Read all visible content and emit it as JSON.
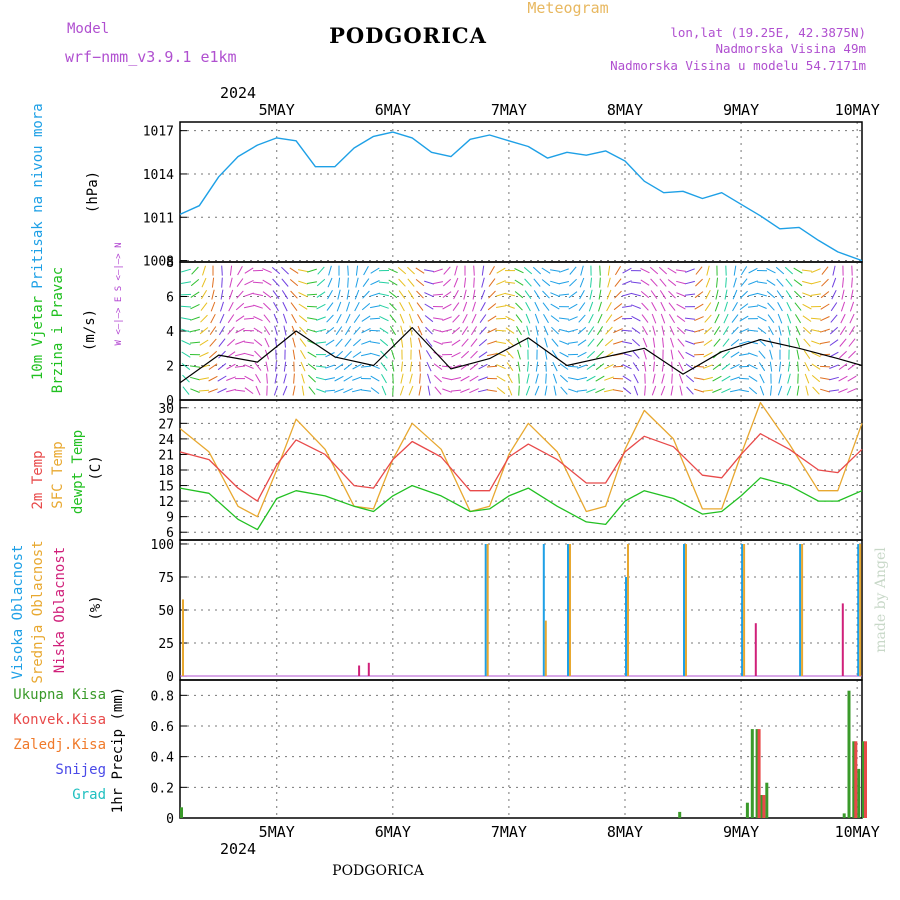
{
  "header": {
    "model_label": "Model",
    "model_name": "wrf−nmm_v3.9.1  e1km",
    "station_title": "PODGORICA",
    "meteogram_label": "Meteogram",
    "lonlat": "lon,lat (19.25E, 42.3875N)",
    "elevation": "Nadmorska Visina 49m",
    "model_elevation": "Nadmorska Visina u modelu 54.7171m",
    "footer_title": "PODGORICA",
    "watermark": "made by Angel"
  },
  "colors": {
    "pressure": "#1ea0e6",
    "temp_2m": "#e84a4a",
    "temp_sfc": "#e8a830",
    "dewpt": "#22c022",
    "cloud_high": "#1ea0e6",
    "cloud_mid": "#e8a830",
    "cloud_low": "#d0207a",
    "precip_total": "#3a9a2a",
    "precip_conv": "#e84a4a",
    "precip_frozen": "#f07a2a",
    "precip_snow": "#4a4ae8",
    "precip_graupel": "#20c0c0",
    "wind_label": "#20c020",
    "direction_legend": "#b040d0",
    "model_text": "#b050d0"
  },
  "chart_data": {
    "type": "line",
    "time_axis": {
      "year": "2024",
      "days": [
        "5MAY",
        "6MAY",
        "7MAY",
        "8MAY",
        "9MAY",
        "10MAY"
      ],
      "start": "2024-05-04 16:00",
      "end": "2024-05-10 13:00",
      "step_hours": 1
    },
    "panels": [
      {
        "id": "pressure",
        "ylabel": "Pritisak na nivou mora",
        "units": "(hPa)",
        "yticks": [
          1008,
          1011,
          1014,
          1017
        ],
        "ylim": [
          1007.9,
          1017.6
        ],
        "series": [
          {
            "name": "Pritisak na nivou mora",
            "x": [
              "2024-05-04 16:00",
              "2024-05-04 20:00",
              "2024-05-05 00:00",
              "2024-05-05 04:00",
              "2024-05-05 08:00",
              "2024-05-05 12:00",
              "2024-05-05 16:00",
              "2024-05-05 20:00",
              "2024-05-06 00:00",
              "2024-05-06 04:00",
              "2024-05-06 08:00",
              "2024-05-06 12:00",
              "2024-05-06 16:00",
              "2024-05-06 20:00",
              "2024-05-07 00:00",
              "2024-05-07 04:00",
              "2024-05-07 08:00",
              "2024-05-07 12:00",
              "2024-05-07 16:00",
              "2024-05-07 20:00",
              "2024-05-08 00:00",
              "2024-05-08 04:00",
              "2024-05-08 08:00",
              "2024-05-08 12:00",
              "2024-05-08 16:00",
              "2024-05-08 20:00",
              "2024-05-09 00:00",
              "2024-05-09 04:00",
              "2024-05-09 08:00",
              "2024-05-09 12:00",
              "2024-05-09 16:00",
              "2024-05-09 20:00",
              "2024-05-10 00:00",
              "2024-05-10 04:00",
              "2024-05-10 08:00",
              "2024-05-10 13:00"
            ],
            "values": [
              1011.2,
              1011.8,
              1013.8,
              1015.2,
              1016.0,
              1016.5,
              1016.3,
              1014.5,
              1014.5,
              1015.8,
              1016.6,
              1016.9,
              1016.5,
              1015.5,
              1015.2,
              1016.4,
              1016.7,
              1016.3,
              1015.9,
              1015.1,
              1015.5,
              1015.3,
              1015.6,
              1014.9,
              1013.5,
              1012.7,
              1012.8,
              1012.3,
              1012.7,
              1011.9,
              1011.1,
              1010.2,
              1010.3,
              1009.4,
              1008.6,
              1008.0
            ]
          }
        ]
      },
      {
        "id": "wind",
        "ylabel": "10m Vjetar",
        "ylabel2": "Brzina i Pravac",
        "units": "(m/s)",
        "direction_legend": "W <–|–> E   S <–|–> N",
        "yticks": [
          0,
          2,
          4,
          6,
          8
        ],
        "ylim": [
          0,
          8
        ],
        "series": [
          {
            "name": "10m Vjetar brzina",
            "x": [
              "2024-05-04 16:00",
              "2024-05-05 00:00",
              "2024-05-05 08:00",
              "2024-05-05 16:00",
              "2024-05-06 00:00",
              "2024-05-06 08:00",
              "2024-05-06 16:00",
              "2024-05-07 00:00",
              "2024-05-07 08:00",
              "2024-05-07 16:00",
              "2024-05-08 00:00",
              "2024-05-08 08:00",
              "2024-05-08 16:00",
              "2024-05-09 00:00",
              "2024-05-09 08:00",
              "2024-05-09 16:00",
              "2024-05-10 00:00",
              "2024-05-10 08:00",
              "2024-05-10 13:00"
            ],
            "values": [
              1.0,
              2.6,
              2.2,
              4.0,
              2.5,
              2.0,
              4.2,
              1.8,
              2.4,
              3.6,
              2.0,
              2.5,
              3.0,
              1.5,
              2.8,
              3.5,
              3.0,
              2.4,
              2.0
            ]
          }
        ]
      },
      {
        "id": "temperature",
        "ylabel_2m": "2m Temp",
        "ylabel_sfc": "SFC Temp",
        "ylabel_dewpt": "dewpt Temp",
        "units": "(C)",
        "yticks": [
          6,
          9,
          12,
          15,
          18,
          21,
          24,
          27,
          30
        ],
        "ylim": [
          4.5,
          31.5
        ],
        "series": [
          {
            "name": "2m Temp",
            "x": [
              "2024-05-04 16:00",
              "2024-05-04 22:00",
              "2024-05-05 04:00",
              "2024-05-05 08:00",
              "2024-05-05 12:00",
              "2024-05-05 16:00",
              "2024-05-05 22:00",
              "2024-05-06 04:00",
              "2024-05-06 08:00",
              "2024-05-06 12:00",
              "2024-05-06 16:00",
              "2024-05-06 22:00",
              "2024-05-07 04:00",
              "2024-05-07 08:00",
              "2024-05-07 12:00",
              "2024-05-07 16:00",
              "2024-05-07 22:00",
              "2024-05-08 04:00",
              "2024-05-08 08:00",
              "2024-05-08 12:00",
              "2024-05-08 16:00",
              "2024-05-08 22:00",
              "2024-05-09 04:00",
              "2024-05-09 08:00",
              "2024-05-09 12:00",
              "2024-05-09 16:00",
              "2024-05-09 22:00",
              "2024-05-10 04:00",
              "2024-05-10 08:00",
              "2024-05-10 13:00"
            ],
            "values": [
              21.5,
              20.0,
              14.5,
              12.0,
              19.0,
              23.8,
              21.0,
              15.0,
              14.5,
              20.0,
              23.5,
              20.5,
              14.0,
              14.0,
              20.5,
              23.0,
              20.0,
              15.5,
              15.5,
              21.5,
              24.5,
              22.5,
              17.0,
              16.5,
              21.0,
              25.0,
              22.0,
              18.0,
              17.5,
              22.0
            ]
          },
          {
            "name": "SFC Temp",
            "x": [
              "2024-05-04 16:00",
              "2024-05-04 22:00",
              "2024-05-05 04:00",
              "2024-05-05 08:00",
              "2024-05-05 12:00",
              "2024-05-05 16:00",
              "2024-05-05 22:00",
              "2024-05-06 04:00",
              "2024-05-06 08:00",
              "2024-05-06 12:00",
              "2024-05-06 16:00",
              "2024-05-06 22:00",
              "2024-05-07 04:00",
              "2024-05-07 08:00",
              "2024-05-07 12:00",
              "2024-05-07 16:00",
              "2024-05-07 22:00",
              "2024-05-08 04:00",
              "2024-05-08 08:00",
              "2024-05-08 12:00",
              "2024-05-08 16:00",
              "2024-05-08 22:00",
              "2024-05-09 04:00",
              "2024-05-09 08:00",
              "2024-05-09 12:00",
              "2024-05-09 16:00",
              "2024-05-09 22:00",
              "2024-05-10 04:00",
              "2024-05-10 08:00",
              "2024-05-10 13:00"
            ],
            "values": [
              26.0,
              21.5,
              11.0,
              9.0,
              18.0,
              27.8,
              22.0,
              11.0,
              10.5,
              20.0,
              27.0,
              22.0,
              10.0,
              11.0,
              21.0,
              27.0,
              21.5,
              10.0,
              11.0,
              22.0,
              29.5,
              24.0,
              10.5,
              10.5,
              21.0,
              31.0,
              23.0,
              14.0,
              14.0,
              27.0
            ]
          },
          {
            "name": "dewpt Temp",
            "x": [
              "2024-05-04 16:00",
              "2024-05-04 22:00",
              "2024-05-05 04:00",
              "2024-05-05 08:00",
              "2024-05-05 12:00",
              "2024-05-05 16:00",
              "2024-05-05 22:00",
              "2024-05-06 04:00",
              "2024-05-06 08:00",
              "2024-05-06 12:00",
              "2024-05-06 16:00",
              "2024-05-06 22:00",
              "2024-05-07 04:00",
              "2024-05-07 08:00",
              "2024-05-07 12:00",
              "2024-05-07 16:00",
              "2024-05-07 22:00",
              "2024-05-08 04:00",
              "2024-05-08 08:00",
              "2024-05-08 12:00",
              "2024-05-08 16:00",
              "2024-05-08 22:00",
              "2024-05-09 04:00",
              "2024-05-09 08:00",
              "2024-05-09 12:00",
              "2024-05-09 16:00",
              "2024-05-09 22:00",
              "2024-05-10 04:00",
              "2024-05-10 08:00",
              "2024-05-10 13:00"
            ],
            "values": [
              14.5,
              13.5,
              8.5,
              6.5,
              12.5,
              14.0,
              13.0,
              11.0,
              10.0,
              13.0,
              15.0,
              13.0,
              10.0,
              10.5,
              13.0,
              14.5,
              11.0,
              8.0,
              7.5,
              12.0,
              14.0,
              12.5,
              9.5,
              10.0,
              13.0,
              16.5,
              15.0,
              12.0,
              12.0,
              14.0
            ]
          }
        ]
      },
      {
        "id": "cloud",
        "ylabel_high": "Visoka Oblacnost",
        "ylabel_mid": "Srednja Oblacnost",
        "ylabel_low": "Niska Oblacnost",
        "units": "(%)",
        "yticks": [
          0,
          25,
          50,
          75,
          100
        ],
        "ylim": [
          -3,
          103
        ],
        "type": "bar",
        "series": [
          {
            "name": "Visoka Oblacnost",
            "x": [
              "2024-05-07 07:00",
              "2024-05-07 19:00",
              "2024-05-08 00:00",
              "2024-05-08 12:00",
              "2024-05-09 00:00",
              "2024-05-09 12:00",
              "2024-05-10 00:00",
              "2024-05-10 12:00"
            ],
            "values": [
              100,
              100,
              100,
              75,
              100,
              100,
              100,
              100
            ]
          },
          {
            "name": "Srednja Oblacnost",
            "x": [
              "2024-05-04 16:00",
              "2024-05-07 07:00",
              "2024-05-07 19:00",
              "2024-05-08 00:00",
              "2024-05-08 12:00",
              "2024-05-09 00:00",
              "2024-05-09 12:00",
              "2024-05-10 00:00",
              "2024-05-10 12:00"
            ],
            "values": [
              58,
              100,
              42,
              100,
              100,
              100,
              100,
              100,
              100
            ]
          },
          {
            "name": "Niska Oblacnost",
            "x": [
              "2024-05-06 04:00",
              "2024-05-06 06:00",
              "2024-05-09 14:00",
              "2024-05-10 08:00"
            ],
            "values": [
              8,
              10,
              40,
              55
            ]
          }
        ]
      },
      {
        "id": "precip",
        "ylabel": "1hr Precip (mm)",
        "legend": [
          "Ukupna Kisa",
          "Konvek.Kisa",
          "Zaledj.Kisa",
          "Snijeg",
          "Grad"
        ],
        "yticks": [
          0,
          0.2,
          0.4,
          0.6,
          0.8
        ],
        "ylim": [
          0,
          0.9
        ],
        "type": "bar",
        "series": [
          {
            "name": "Ukupna Kisa",
            "x": [
              "2024-05-04 16:00",
              "2024-05-08 23:00",
              "2024-05-09 13:00",
              "2024-05-09 14:00",
              "2024-05-09 15:00",
              "2024-05-09 16:00",
              "2024-05-09 17:00",
              "2024-05-10 09:00",
              "2024-05-10 10:00",
              "2024-05-10 11:00",
              "2024-05-10 12:00",
              "2024-05-10 13:00"
            ],
            "values": [
              0.07,
              0.04,
              0.1,
              0.58,
              0.58,
              0.15,
              0.23,
              0.03,
              0.83,
              0.5,
              0.32,
              0.5
            ]
          },
          {
            "name": "Konvek.Kisa",
            "x": [
              "2024-05-09 15:00",
              "2024-05-09 16:00",
              "2024-05-10 11:00",
              "2024-05-10 13:00"
            ],
            "values": [
              0.58,
              0.15,
              0.5,
              0.5
            ]
          }
        ]
      }
    ]
  }
}
